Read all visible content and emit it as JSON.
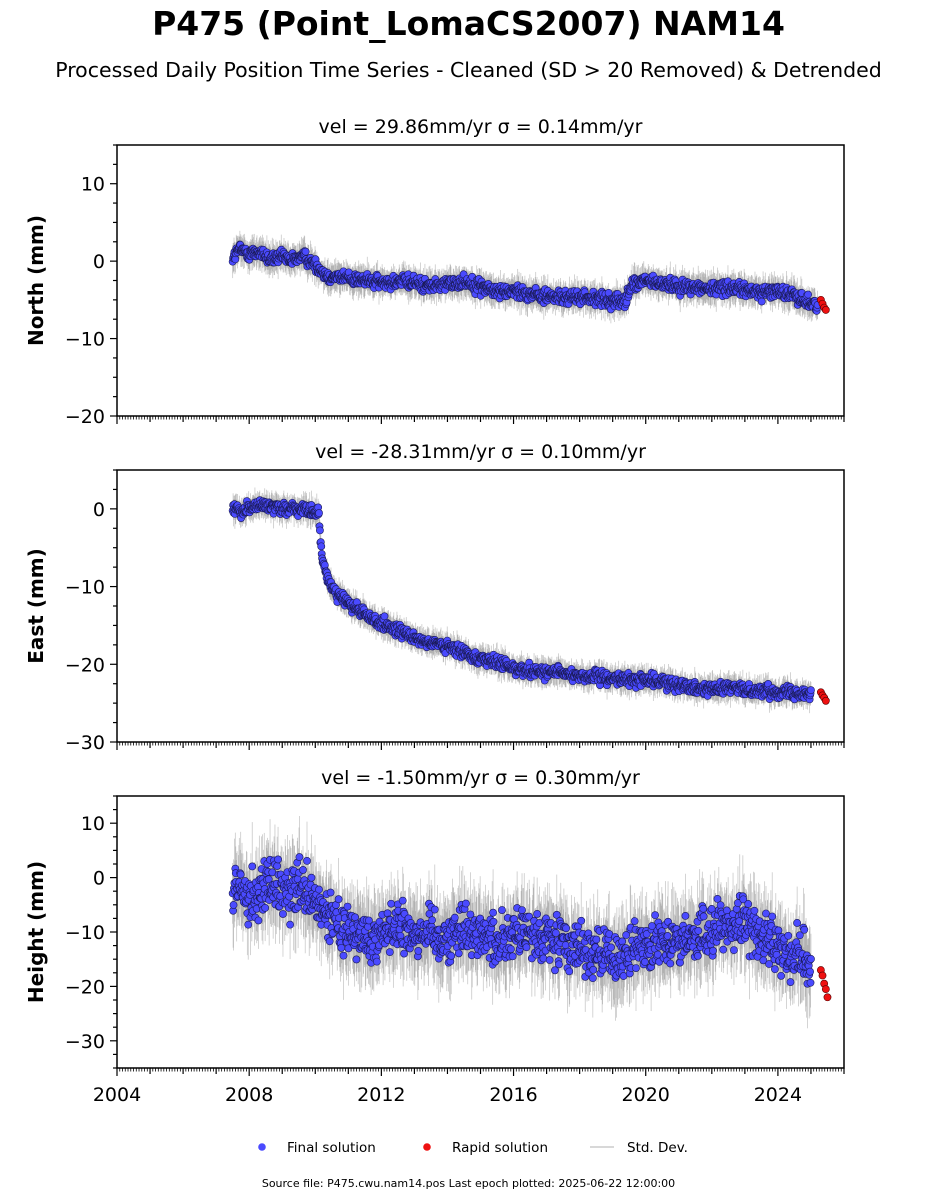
{
  "title": "P475 (Point_LomaCS2007) NAM14",
  "subtitle": "Processed Daily Position Time Series - Cleaned (SD > 20 Removed) & Detrended",
  "source_text": "Source file: P475.cwu.nam14.pos  Last epoch plotted: 2025-06-22 12:00:00",
  "colors": {
    "final": "#4a4aff",
    "rapid": "#ee1111",
    "stddev": "#888888"
  },
  "legend": [
    {
      "key": "final",
      "label": "Final solution"
    },
    {
      "key": "rapid",
      "label": "Rapid solution"
    },
    {
      "key": "stddev",
      "label": "Std. Dev."
    }
  ],
  "chart_data": [
    {
      "type": "scatter",
      "panel_title": "vel = 29.86mm/yr   σ = 0.14mm/yr",
      "ylabel": "North (mm)",
      "xlim": [
        2004,
        2026
      ],
      "ylim": [
        -20,
        15
      ],
      "yticks": [
        -20,
        -10,
        0,
        10
      ],
      "xticks": [],
      "series": [
        {
          "name": "Final solution",
          "x": [
            2007.5,
            2007.7,
            2008.0,
            2008.3,
            2008.6,
            2009.0,
            2009.3,
            2009.6,
            2010.0,
            2010.3,
            2010.6,
            2011.0,
            2011.5,
            2012.0,
            2012.5,
            2013.0,
            2013.5,
            2014.0,
            2014.5,
            2015.0,
            2015.5,
            2016.0,
            2016.5,
            2017.0,
            2017.5,
            2018.0,
            2018.5,
            2019.0,
            2019.4,
            2019.6,
            2020.0,
            2020.5,
            2021.0,
            2021.5,
            2022.0,
            2022.5,
            2023.0,
            2023.5,
            2024.0,
            2024.5,
            2025.0,
            2025.2
          ],
          "y": [
            0.5,
            1.5,
            1.0,
            1.2,
            0.3,
            0.5,
            0.0,
            0.8,
            -0.5,
            -1.8,
            -2.0,
            -2.2,
            -2.5,
            -2.8,
            -2.6,
            -2.8,
            -3.2,
            -3.0,
            -2.6,
            -3.2,
            -4.0,
            -3.8,
            -4.2,
            -4.5,
            -4.8,
            -4.6,
            -4.9,
            -5.2,
            -5.0,
            -3.0,
            -2.6,
            -3.0,
            -3.2,
            -3.4,
            -3.6,
            -3.3,
            -3.8,
            -4.0,
            -3.8,
            -4.5,
            -5.5,
            -5.8
          ]
        },
        {
          "name": "Rapid solution",
          "x": [
            2025.3,
            2025.35,
            2025.4,
            2025.45
          ],
          "y": [
            -5.0,
            -5.5,
            -6.0,
            -6.3
          ]
        }
      ]
    },
    {
      "type": "scatter",
      "panel_title": "vel = -28.31mm/yr   σ = 0.10mm/yr",
      "ylabel": "East (mm)",
      "xlim": [
        2004,
        2026
      ],
      "ylim": [
        -30,
        5
      ],
      "yticks": [
        -30,
        -20,
        -10,
        0
      ],
      "xticks": [],
      "series": [
        {
          "name": "Final solution",
          "x": [
            2007.5,
            2007.8,
            2008.2,
            2008.6,
            2009.0,
            2009.4,
            2009.8,
            2010.1,
            2010.2,
            2010.3,
            2010.5,
            2010.8,
            2011.2,
            2011.6,
            2012.0,
            2012.5,
            2013.0,
            2013.5,
            2014.0,
            2014.5,
            2015.0,
            2015.5,
            2016.0,
            2016.5,
            2017.0,
            2017.5,
            2018.0,
            2018.5,
            2019.0,
            2019.5,
            2020.0,
            2020.5,
            2021.0,
            2021.5,
            2022.0,
            2022.5,
            2023.0,
            2023.5,
            2024.0,
            2024.5,
            2025.0
          ],
          "y": [
            0.0,
            -0.2,
            0.5,
            0.3,
            0.2,
            0.0,
            -0.3,
            -0.5,
            -6.5,
            -8.0,
            -10.0,
            -11.5,
            -12.8,
            -13.8,
            -14.8,
            -15.8,
            -16.5,
            -17.3,
            -17.8,
            -18.5,
            -19.2,
            -19.8,
            -20.5,
            -20.8,
            -21.0,
            -21.2,
            -21.5,
            -21.7,
            -21.8,
            -22.0,
            -22.0,
            -22.3,
            -22.6,
            -23.0,
            -23.2,
            -23.0,
            -23.3,
            -23.4,
            -23.5,
            -23.6,
            -23.8
          ]
        },
        {
          "name": "Rapid solution",
          "x": [
            2025.3,
            2025.35,
            2025.4,
            2025.45
          ],
          "y": [
            -23.6,
            -24.0,
            -24.3,
            -24.7
          ]
        }
      ]
    },
    {
      "type": "scatter",
      "panel_title": "vel = -1.50mm/yr   σ = 0.30mm/yr",
      "ylabel": "Height (mm)",
      "xlim": [
        2004,
        2026
      ],
      "ylim": [
        -35,
        15
      ],
      "yticks": [
        -30,
        -20,
        -10,
        0,
        10
      ],
      "xticks": [
        "2004",
        "2008",
        "2012",
        "2016",
        "2020",
        "2024"
      ],
      "series": [
        {
          "name": "Final solution",
          "x": [
            2007.5,
            2007.8,
            2008.2,
            2008.6,
            2009.0,
            2009.5,
            2010.0,
            2010.5,
            2011.0,
            2011.5,
            2012.0,
            2012.5,
            2013.0,
            2013.5,
            2014.0,
            2014.5,
            2015.0,
            2015.5,
            2016.0,
            2016.5,
            2017.0,
            2017.5,
            2018.0,
            2018.5,
            2019.0,
            2019.5,
            2020.0,
            2020.5,
            2021.0,
            2021.5,
            2022.0,
            2022.5,
            2023.0,
            2023.5,
            2024.0,
            2024.5,
            2025.0
          ],
          "y": [
            -3,
            -2,
            -4,
            -1,
            -3,
            -2,
            -5,
            -8,
            -10,
            -11,
            -10,
            -9,
            -10,
            -10,
            -11,
            -9,
            -10,
            -12,
            -10,
            -11,
            -11,
            -12,
            -13,
            -14,
            -15,
            -14,
            -12,
            -11,
            -12,
            -11,
            -10,
            -9,
            -8,
            -11,
            -13,
            -14,
            -16
          ]
        },
        {
          "name": "Rapid solution",
          "x": [
            2025.3,
            2025.35,
            2025.4,
            2025.45,
            2025.5
          ],
          "y": [
            -17,
            -18,
            -19.5,
            -20.5,
            -22
          ]
        }
      ]
    }
  ]
}
